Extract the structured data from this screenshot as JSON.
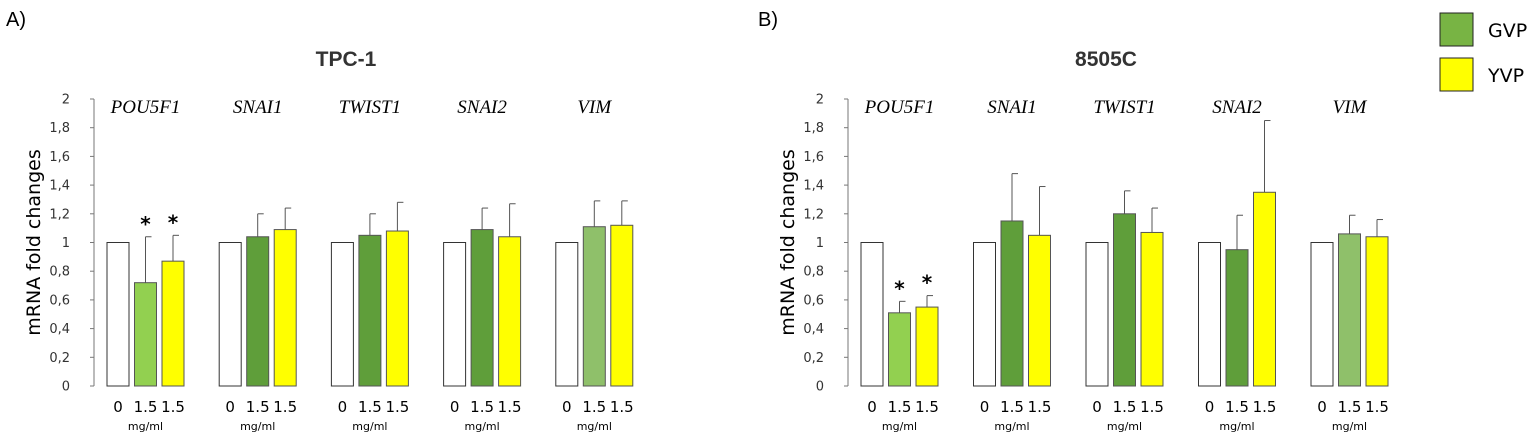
{
  "legend": {
    "position": "top-right",
    "items": [
      {
        "label": "GVP",
        "color": "#78b444"
      },
      {
        "label": "YVP",
        "color": "#ffff00"
      }
    ]
  },
  "colors": {
    "control": "#ffffff",
    "gvp_light": "#92d050",
    "gvp": "#5f9e3a",
    "gvp_pale": "#8fc06a",
    "yvp": "#ffff00"
  },
  "chart_data": [
    {
      "panel": "A)",
      "type": "bar",
      "title": "TPC-1",
      "ylabel": "mRNA fold changes",
      "ylim": [
        0,
        2
      ],
      "yticks": [
        "0",
        "0,2",
        "0,4",
        "0,6",
        "0,8",
        "1",
        "1,2",
        "1,4",
        "1,6",
        "1,8",
        "2"
      ],
      "unit_label": "mg/ml",
      "grid": false,
      "groups": [
        {
          "gene": "POU5F1",
          "bars": [
            {
              "dose": "0",
              "value": 1.0,
              "error": 0,
              "color_key": "control"
            },
            {
              "dose": "1.5",
              "value": 0.72,
              "error": 0.32,
              "color_key": "gvp_light",
              "sig": "*"
            },
            {
              "dose": "1.5",
              "value": 0.87,
              "error": 0.18,
              "color_key": "yvp",
              "sig": "*"
            }
          ]
        },
        {
          "gene": "SNAI1",
          "bars": [
            {
              "dose": "0",
              "value": 1.0,
              "error": 0,
              "color_key": "control"
            },
            {
              "dose": "1.5",
              "value": 1.04,
              "error": 0.16,
              "color_key": "gvp"
            },
            {
              "dose": "1.5",
              "value": 1.09,
              "error": 0.15,
              "color_key": "yvp"
            }
          ]
        },
        {
          "gene": "TWIST1",
          "bars": [
            {
              "dose": "0",
              "value": 1.0,
              "error": 0,
              "color_key": "control"
            },
            {
              "dose": "1.5",
              "value": 1.05,
              "error": 0.15,
              "color_key": "gvp"
            },
            {
              "dose": "1.5",
              "value": 1.08,
              "error": 0.2,
              "color_key": "yvp"
            }
          ]
        },
        {
          "gene": "SNAI2",
          "bars": [
            {
              "dose": "0",
              "value": 1.0,
              "error": 0,
              "color_key": "control"
            },
            {
              "dose": "1.5",
              "value": 1.09,
              "error": 0.15,
              "color_key": "gvp"
            },
            {
              "dose": "1.5",
              "value": 1.04,
              "error": 0.23,
              "color_key": "yvp"
            }
          ]
        },
        {
          "gene": "VIM",
          "bars": [
            {
              "dose": "0",
              "value": 1.0,
              "error": 0,
              "color_key": "control"
            },
            {
              "dose": "1.5",
              "value": 1.11,
              "error": 0.18,
              "color_key": "gvp_pale"
            },
            {
              "dose": "1.5",
              "value": 1.12,
              "error": 0.17,
              "color_key": "yvp"
            }
          ]
        }
      ]
    },
    {
      "panel": "B)",
      "type": "bar",
      "title": "8505C",
      "ylabel": "mRNA fold changes",
      "ylim": [
        0,
        2
      ],
      "yticks": [
        "0",
        "0,2",
        "0,4",
        "0,6",
        "0,8",
        "1",
        "1,2",
        "1,4",
        "1,6",
        "1,8",
        "2"
      ],
      "unit_label": "mg/ml",
      "grid": false,
      "groups": [
        {
          "gene": "POU5F1",
          "bars": [
            {
              "dose": "0",
              "value": 1.0,
              "error": 0,
              "color_key": "control"
            },
            {
              "dose": "1.5",
              "value": 0.51,
              "error": 0.08,
              "color_key": "gvp_light",
              "sig": "*"
            },
            {
              "dose": "1.5",
              "value": 0.55,
              "error": 0.08,
              "color_key": "yvp",
              "sig": "*"
            }
          ]
        },
        {
          "gene": "SNAI1",
          "bars": [
            {
              "dose": "0",
              "value": 1.0,
              "error": 0,
              "color_key": "control"
            },
            {
              "dose": "1.5",
              "value": 1.15,
              "error": 0.33,
              "color_key": "gvp"
            },
            {
              "dose": "1.5",
              "value": 1.05,
              "error": 0.34,
              "color_key": "yvp"
            }
          ]
        },
        {
          "gene": "TWIST1",
          "bars": [
            {
              "dose": "0",
              "value": 1.0,
              "error": 0,
              "color_key": "control"
            },
            {
              "dose": "1.5",
              "value": 1.2,
              "error": 0.16,
              "color_key": "gvp"
            },
            {
              "dose": "1.5",
              "value": 1.07,
              "error": 0.17,
              "color_key": "yvp"
            }
          ]
        },
        {
          "gene": "SNAI2",
          "bars": [
            {
              "dose": "0",
              "value": 1.0,
              "error": 0,
              "color_key": "control"
            },
            {
              "dose": "1.5",
              "value": 0.95,
              "error": 0.24,
              "color_key": "gvp"
            },
            {
              "dose": "1.5",
              "value": 1.35,
              "error": 0.5,
              "color_key": "yvp"
            }
          ]
        },
        {
          "gene": "VIM",
          "bars": [
            {
              "dose": "0",
              "value": 1.0,
              "error": 0,
              "color_key": "control"
            },
            {
              "dose": "1.5",
              "value": 1.06,
              "error": 0.13,
              "color_key": "gvp_pale"
            },
            {
              "dose": "1.5",
              "value": 1.04,
              "error": 0.12,
              "color_key": "yvp"
            }
          ]
        }
      ]
    }
  ]
}
